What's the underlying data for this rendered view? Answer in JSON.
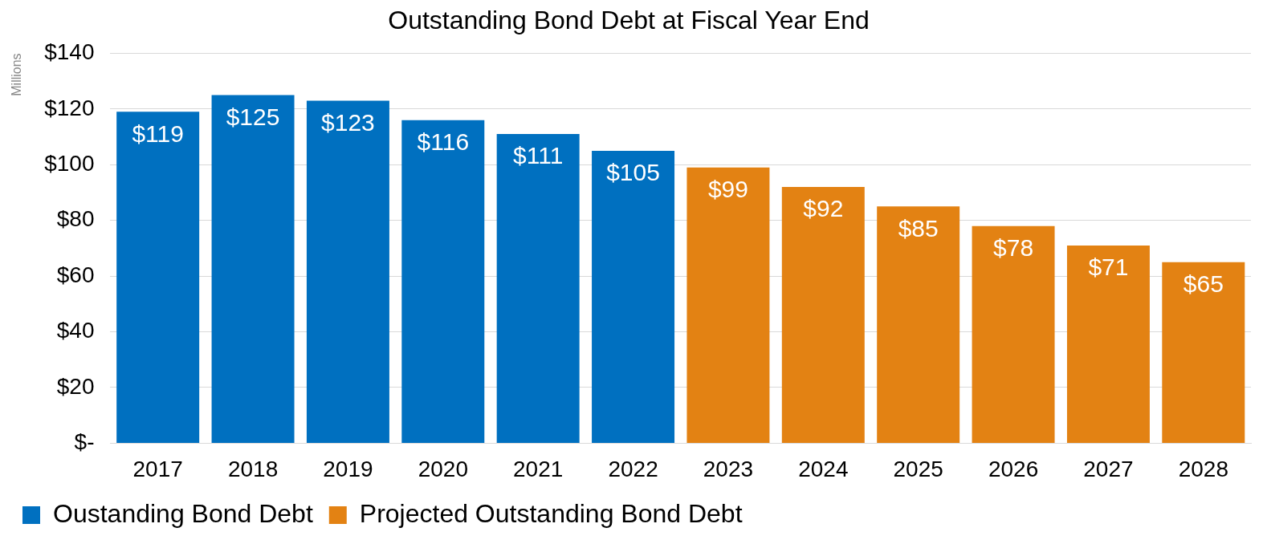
{
  "chart_data": {
    "type": "bar",
    "title": "Outstanding Bond Debt at Fiscal Year End",
    "ylabel": "Millions",
    "categories": [
      "2017",
      "2018",
      "2019",
      "2020",
      "2021",
      "2022",
      "2023",
      "2024",
      "2025",
      "2026",
      "2027",
      "2028"
    ],
    "series": [
      {
        "name": "Oustanding Bond Debt",
        "color": "#0070c0",
        "values": [
          119,
          125,
          123,
          116,
          111,
          105,
          null,
          null,
          null,
          null,
          null,
          null
        ],
        "value_labels": [
          "$119",
          "$125",
          "$123",
          "$116",
          "$111",
          "$105",
          null,
          null,
          null,
          null,
          null,
          null
        ]
      },
      {
        "name": "Projected Outstanding Bond Debt",
        "color": "#e38213",
        "values": [
          null,
          null,
          null,
          null,
          null,
          null,
          99,
          92,
          85,
          78,
          71,
          65
        ],
        "value_labels": [
          null,
          null,
          null,
          null,
          null,
          null,
          "$99",
          "$92",
          "$85",
          "$78",
          "$71",
          "$65"
        ]
      }
    ],
    "ylim": [
      0,
      140
    ],
    "yticks": [
      {
        "value": 0,
        "label": "$-"
      },
      {
        "value": 20,
        "label": "$20"
      },
      {
        "value": 40,
        "label": "$40"
      },
      {
        "value": 60,
        "label": "$60"
      },
      {
        "value": 80,
        "label": "$80"
      },
      {
        "value": 100,
        "label": "$100"
      },
      {
        "value": 120,
        "label": "$120"
      },
      {
        "value": 140,
        "label": "$140"
      }
    ],
    "grid": "y",
    "legend": "bottom"
  }
}
